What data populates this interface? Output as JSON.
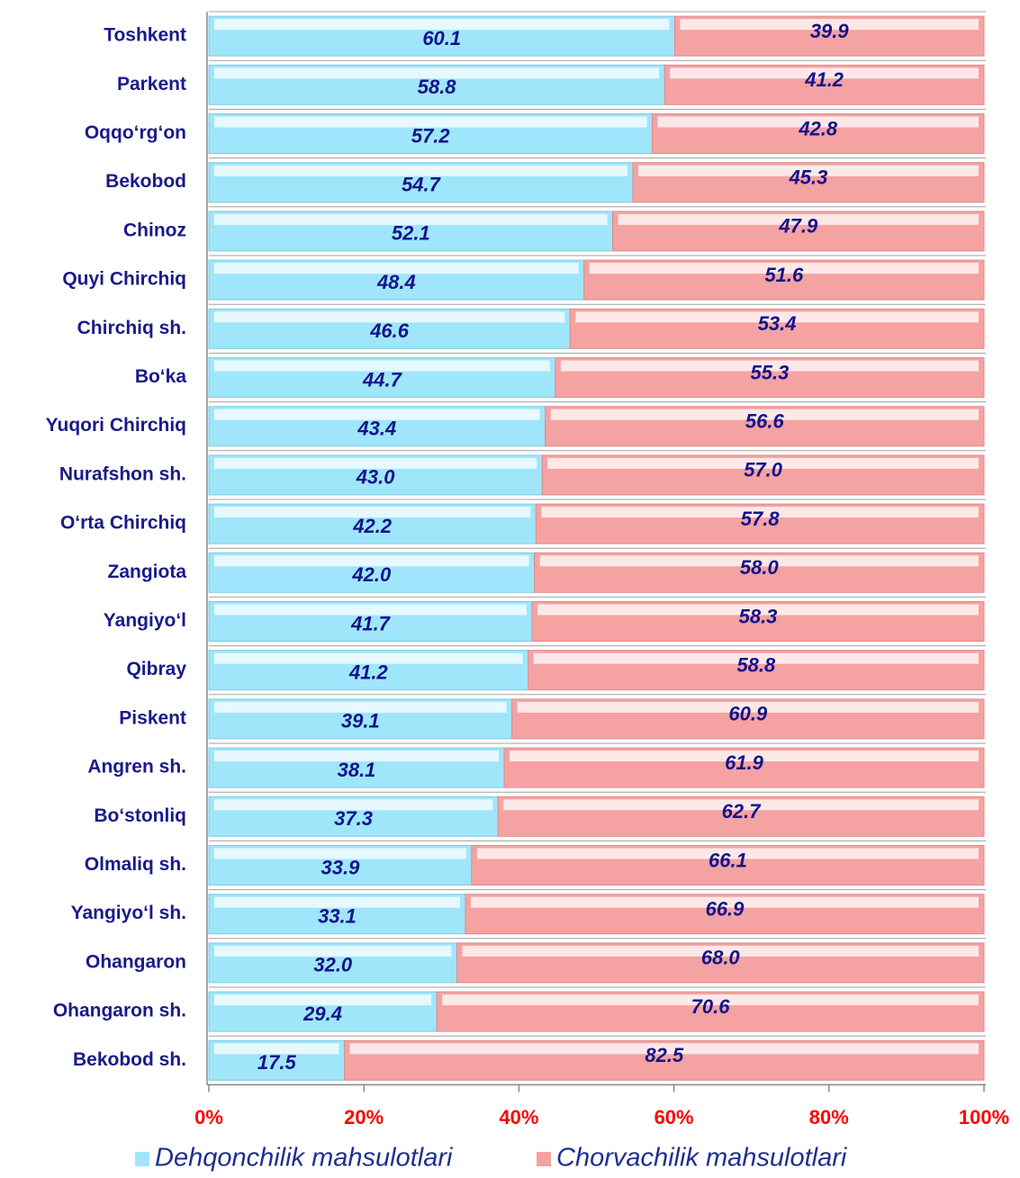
{
  "chart_data": {
    "type": "stacked_bar_horizontal",
    "categories": [
      "Toshkent",
      "Parkent",
      "Oqqo‘rg‘on",
      "Bekobod",
      "Chinoz",
      "Quyi Chirchiq",
      "Chirchiq sh.",
      "Bo‘ka",
      "Yuqori Chirchiq",
      "Nurafshon sh.",
      "O‘rta Chirchiq",
      "Zangiota",
      "Yangiyo‘l",
      "Qibray",
      "Piskent",
      "Angren sh.",
      "Bo‘stonliq",
      "Olmaliq sh.",
      "Yangiyo‘l sh.",
      "Ohangaron",
      "Ohangaron sh.",
      "Bekobod sh."
    ],
    "series": [
      {
        "name": "Dehqonchilik mahsulotlari",
        "color": "#9fe6fb",
        "values": [
          60.1,
          58.8,
          57.2,
          54.7,
          52.1,
          48.4,
          46.6,
          44.7,
          43.4,
          43.0,
          42.2,
          42.0,
          41.7,
          41.2,
          39.1,
          38.1,
          37.3,
          33.9,
          33.1,
          32.0,
          29.4,
          17.5
        ],
        "value_labels": [
          "60.1",
          "58.8",
          "57.2",
          "54.7",
          "52.1",
          "48.4",
          "46.6",
          "44.7",
          "43.4",
          "43.0",
          "42.2",
          "42.0",
          "41.7",
          "41.2",
          "39.1",
          "38.1",
          "37.3",
          "33.9",
          "33.1",
          "32.0",
          "29.4",
          "17.5"
        ]
      },
      {
        "name": "Chorvachilik mahsulotlari",
        "color": "#f5a2a2",
        "values": [
          39.9,
          41.2,
          42.8,
          45.3,
          47.9,
          51.6,
          53.4,
          55.3,
          56.6,
          57.0,
          57.8,
          58.0,
          58.3,
          58.8,
          60.9,
          61.9,
          62.7,
          66.1,
          66.9,
          68.0,
          70.6,
          82.5
        ],
        "value_labels": [
          "39.9",
          "41.2",
          "42.8",
          "45.3",
          "47.9",
          "51.6",
          "53.4",
          "55.3",
          "56.6",
          "57.0",
          "57.8",
          "58.0",
          "58.3",
          "58.8",
          "60.9",
          "61.9",
          "62.7",
          "66.1",
          "66.9",
          "68.0",
          "70.6",
          "82.5"
        ]
      }
    ],
    "xlim": [
      0,
      100
    ],
    "xticks": [
      {
        "value": 0,
        "label": "0%"
      },
      {
        "value": 20,
        "label": "20%"
      },
      {
        "value": 40,
        "label": "40%"
      },
      {
        "value": 60,
        "label": "60%"
      },
      {
        "value": 80,
        "label": "80%"
      },
      {
        "value": 100,
        "label": "100%"
      }
    ],
    "legend": "bottom"
  }
}
